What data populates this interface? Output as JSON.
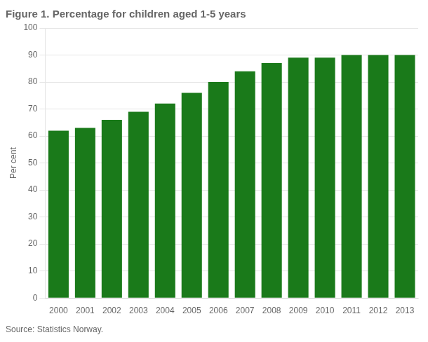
{
  "chart_data": {
    "type": "bar",
    "title": "Figure 1. Percentage for children aged 1-5 years",
    "ylabel": "Per cent",
    "source": "Source: Statistics Norway.",
    "categories": [
      "2000",
      "2001",
      "2002",
      "2003",
      "2004",
      "2005",
      "2006",
      "2007",
      "2008",
      "2009",
      "2010",
      "2011",
      "2012",
      "2013"
    ],
    "values": [
      62,
      63,
      66,
      69,
      72,
      76,
      80,
      84,
      87,
      89,
      89,
      90,
      90,
      90
    ],
    "color": "#1a7a1a",
    "ylim": [
      0,
      100
    ],
    "yticks": [
      0,
      10,
      20,
      30,
      40,
      50,
      60,
      70,
      80,
      90,
      100
    ],
    "grid": true
  }
}
